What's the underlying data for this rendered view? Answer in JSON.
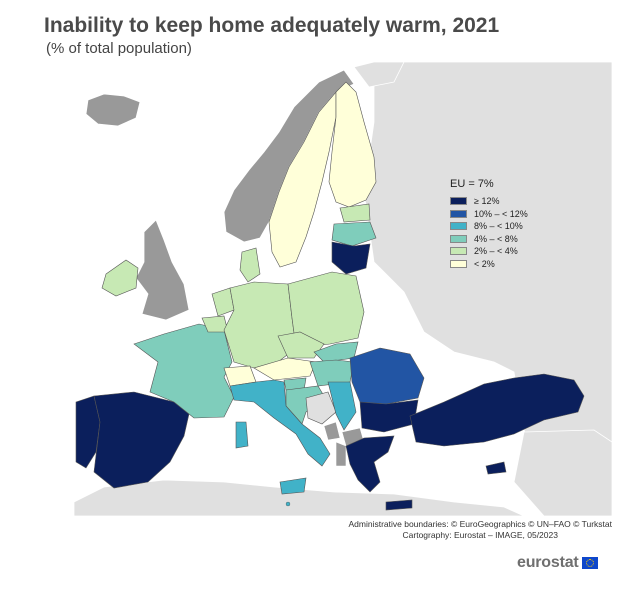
{
  "title": "Inability to keep home adequately warm, 2021",
  "subtitle": "(% of total population)",
  "legend": {
    "title": "EU = 7%",
    "items": [
      {
        "label": "≥ 12%",
        "color": "#0b1f5c"
      },
      {
        "label": "10% – < 12%",
        "color": "#2255a4"
      },
      {
        "label": "8% – < 10%",
        "color": "#41b2c8"
      },
      {
        "label": "4% – < 8%",
        "color": "#7fcdbb"
      },
      {
        "label": "2% – < 4%",
        "color": "#c7e9b4"
      },
      {
        "label": "< 2%",
        "color": "#ffffd9"
      }
    ],
    "nodata_color": "#999999",
    "non_eu_color": "#e0e0e0",
    "sea_color": "#ffffff"
  },
  "credits": {
    "line1": "Administrative boundaries: © EuroGeographics © UN–FAO © Turkstat",
    "line2": "Cartography: Eurostat – IMAGE, 05/2023"
  },
  "logo": {
    "text": "eurostat",
    "icon": "eu-flag-icon"
  }
}
